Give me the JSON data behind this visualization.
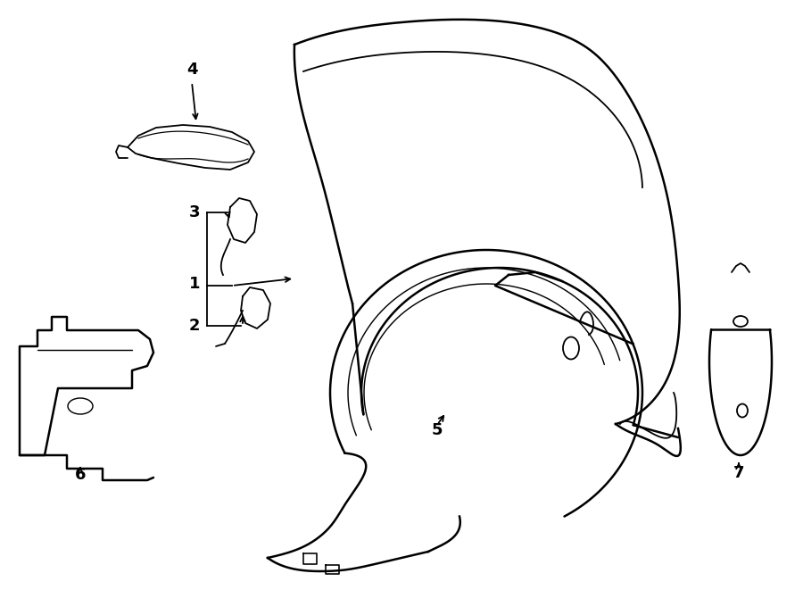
{
  "background_color": "#ffffff",
  "line_color": "#000000",
  "figsize": [
    9.0,
    6.61
  ],
  "dpi": 100,
  "label_fontsize": 13
}
